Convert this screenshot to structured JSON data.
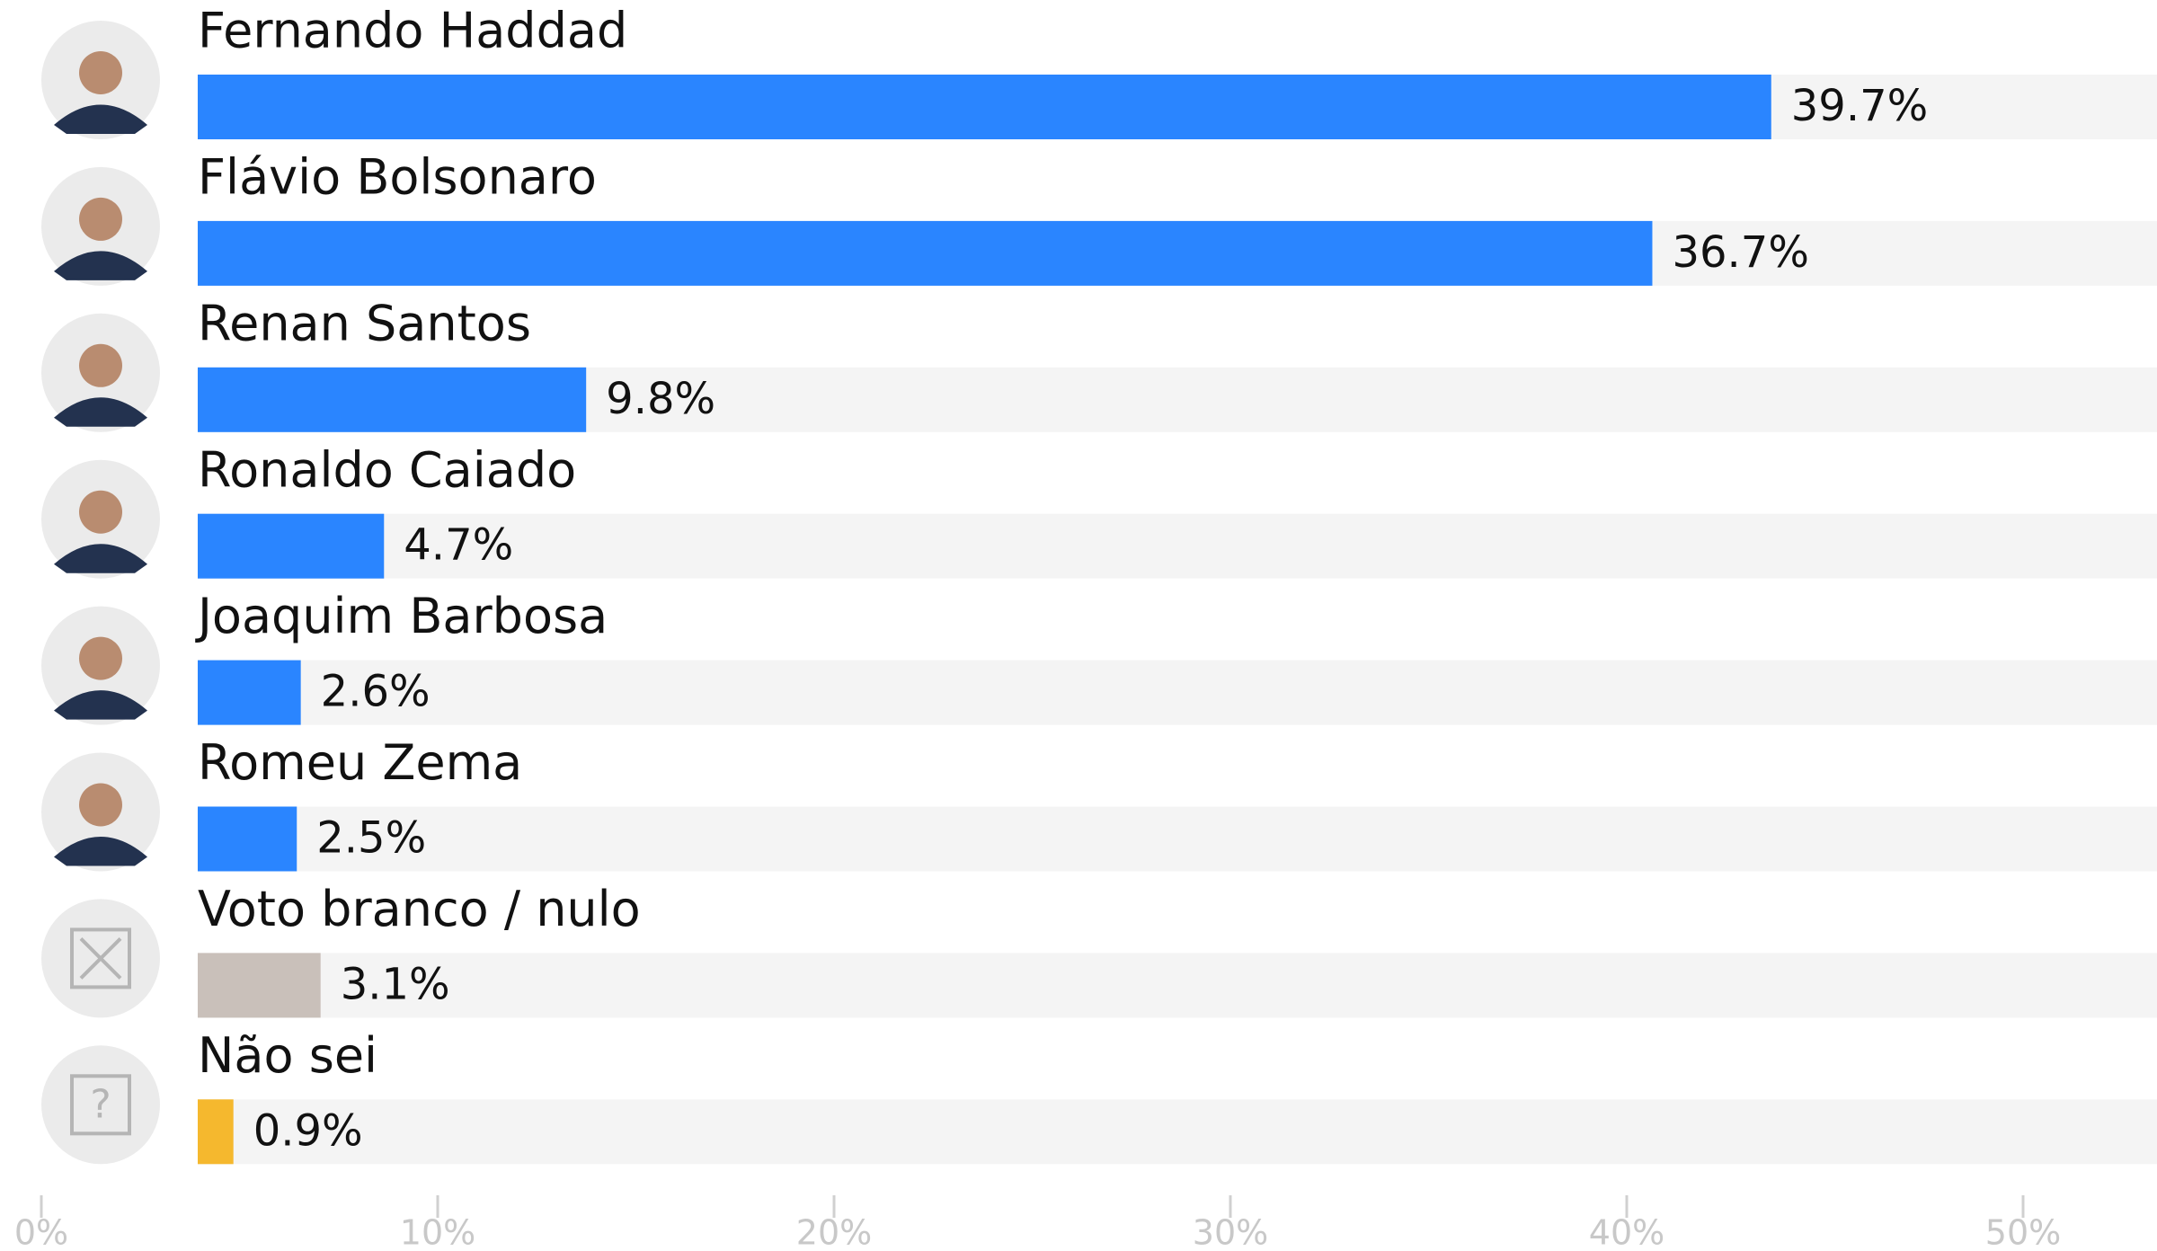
{
  "chart_data": {
    "type": "hbar",
    "categories": [
      "Fernando Haddad",
      "Flávio Bolsonaro",
      "Renan Santos",
      "Ronaldo Caiado",
      "Joaquim Barbosa",
      "Romeu Zema",
      "Voto branco / nulo",
      "Não sei"
    ],
    "values": [
      39.7,
      36.7,
      9.8,
      4.7,
      2.6,
      2.5,
      3.1,
      0.9
    ],
    "value_labels": [
      "39.7%",
      "36.7%",
      "9.8%",
      "4.7%",
      "2.6%",
      "2.5%",
      "3.1%",
      "0.9%"
    ],
    "colors": [
      "#2a85ff",
      "#2a85ff",
      "#2a85ff",
      "#2a85ff",
      "#2a85ff",
      "#2a85ff",
      "#c9c0ba",
      "#f5b82e"
    ],
    "xlim": [
      0,
      50
    ],
    "xticks": [
      {
        "value": 0,
        "label": "0%"
      },
      {
        "value": 10,
        "label": "10%"
      },
      {
        "value": 20,
        "label": "20%"
      },
      {
        "value": 30,
        "label": "30%"
      },
      {
        "value": 40,
        "label": "40%"
      },
      {
        "value": 50,
        "label": "50%"
      }
    ]
  }
}
